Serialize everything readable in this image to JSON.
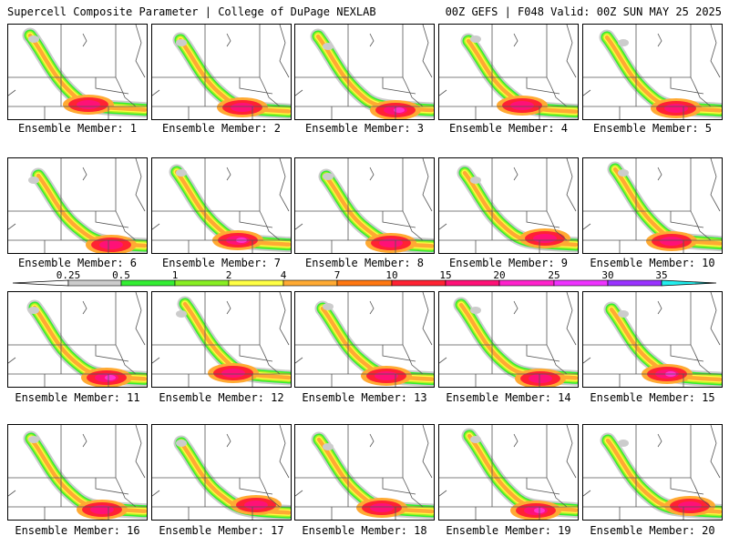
{
  "header": {
    "left_title": "Supercell Composite Parameter | College of DuPage NEXLAB",
    "right_title": "00Z GEFS | F048 Valid: 00Z SUN MAY 25 2025"
  },
  "members": [
    {
      "label": "Ensemble Member: 1"
    },
    {
      "label": "Ensemble Member: 2"
    },
    {
      "label": "Ensemble Member: 3"
    },
    {
      "label": "Ensemble Member: 4"
    },
    {
      "label": "Ensemble Member: 5"
    },
    {
      "label": "Ensemble Member: 6"
    },
    {
      "label": "Ensemble Member: 7"
    },
    {
      "label": "Ensemble Member: 8"
    },
    {
      "label": "Ensemble Member: 9"
    },
    {
      "label": "Ensemble Member: 10"
    },
    {
      "label": "Ensemble Member: 11"
    },
    {
      "label": "Ensemble Member: 12"
    },
    {
      "label": "Ensemble Member: 13"
    },
    {
      "label": "Ensemble Member: 14"
    },
    {
      "label": "Ensemble Member: 15"
    },
    {
      "label": "Ensemble Member: 16"
    },
    {
      "label": "Ensemble Member: 17"
    },
    {
      "label": "Ensemble Member: 18"
    },
    {
      "label": "Ensemble Member: 19"
    },
    {
      "label": "Ensemble Member: 20"
    }
  ],
  "legend": {
    "tick_labels": [
      "0.25",
      "0.5",
      "1",
      "2",
      "4",
      "7",
      "10",
      "15",
      "20",
      "25",
      "30",
      "35"
    ],
    "colors": [
      "#cccccc",
      "#33ee33",
      "#88ee22",
      "#ffff44",
      "#ffaa33",
      "#ff7711",
      "#ff2233",
      "#ff1177",
      "#ff22cc",
      "#ee33ff",
      "#9933ff",
      "#bb66ee",
      "#22eeee"
    ]
  },
  "shading_colors": {
    "gray": "#cccccc",
    "green": "#33ee33",
    "lime": "#aaee22",
    "yellow": "#ffff44",
    "orange": "#ffaa33",
    "red": "#ff2233",
    "magenta": "#ff1177",
    "pink": "#ff33cc"
  }
}
